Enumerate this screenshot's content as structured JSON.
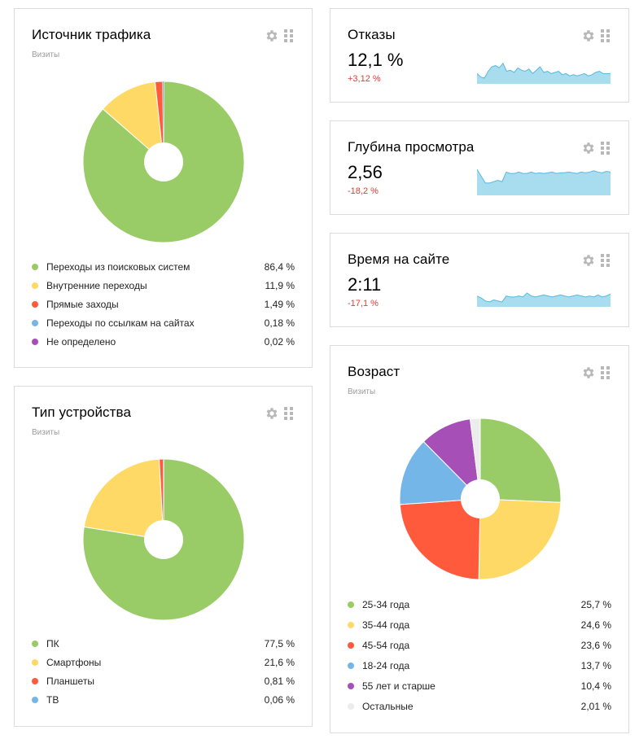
{
  "traffic": {
    "title": "Источник трафика",
    "subtitle": "Визиты",
    "chart_data": {
      "type": "pie",
      "title": "Источник трафика",
      "subtitle": "Визиты",
      "categories": [
        "Переходы из поисковых систем",
        "Внутренние переходы",
        "Прямые заходы",
        "Переходы по ссылкам на сайтах",
        "Не определено"
      ],
      "values": [
        86.4,
        11.9,
        1.49,
        0.18,
        0.02
      ],
      "colors": [
        "#99cc66",
        "#ffd966",
        "#ff5a3c",
        "#74b6e8",
        "#a64fb6"
      ],
      "value_labels": [
        "86,4 %",
        "11,9 %",
        "1,49 %",
        "0,18 %",
        "0,02 %"
      ]
    }
  },
  "device": {
    "title": "Тип устройства",
    "subtitle": "Визиты",
    "chart_data": {
      "type": "pie",
      "title": "Тип устройства",
      "subtitle": "Визиты",
      "categories": [
        "ПК",
        "Смартфоны",
        "Планшеты",
        "ТВ"
      ],
      "values": [
        77.5,
        21.6,
        0.81,
        0.06
      ],
      "colors": [
        "#99cc66",
        "#ffd966",
        "#ff5a3c",
        "#74b6e8"
      ],
      "value_labels": [
        "77,5 %",
        "21,6 %",
        "0,81 %",
        "0,06 %"
      ]
    }
  },
  "bounce": {
    "title": "Отказы",
    "value": "12,1 %",
    "delta": "+3,12 %",
    "spark": [
      0.45,
      0.3,
      0.25,
      0.55,
      0.75,
      0.8,
      0.7,
      0.9,
      0.55,
      0.6,
      0.5,
      0.7,
      0.6,
      0.55,
      0.65,
      0.45,
      0.6,
      0.75,
      0.5,
      0.55,
      0.45,
      0.5,
      0.55,
      0.4,
      0.45,
      0.35,
      0.4,
      0.35,
      0.4,
      0.45,
      0.35,
      0.4,
      0.5,
      0.55,
      0.45,
      0.45,
      0.45
    ]
  },
  "depth": {
    "title": "Глубина просмотра",
    "value": "2,56",
    "delta": "-18,2 %",
    "spark": [
      0.95,
      0.7,
      0.45,
      0.45,
      0.5,
      0.55,
      0.5,
      0.85,
      0.8,
      0.8,
      0.85,
      0.8,
      0.8,
      0.85,
      0.8,
      0.82,
      0.8,
      0.82,
      0.85,
      0.8,
      0.82,
      0.83,
      0.85,
      0.82,
      0.8,
      0.85,
      0.82,
      0.85,
      0.9,
      0.85,
      0.82,
      0.88,
      0.85
    ]
  },
  "time": {
    "title": "Время на сайте",
    "value": "2:11",
    "delta": "-17,1 %",
    "spark": [
      0.55,
      0.45,
      0.3,
      0.25,
      0.35,
      0.3,
      0.25,
      0.55,
      0.5,
      0.5,
      0.55,
      0.5,
      0.7,
      0.55,
      0.5,
      0.55,
      0.6,
      0.55,
      0.5,
      0.55,
      0.6,
      0.55,
      0.5,
      0.55,
      0.6,
      0.55,
      0.5,
      0.55,
      0.5,
      0.6,
      0.5,
      0.55,
      0.65
    ]
  },
  "age": {
    "title": "Возраст",
    "subtitle": "Визиты",
    "chart_data": {
      "type": "pie",
      "title": "Возраст",
      "subtitle": "Визиты",
      "categories": [
        "25-34 года",
        "35-44 года",
        "45-54 года",
        "18-24 года",
        "55 лет и старше",
        "Остальные"
      ],
      "values": [
        25.7,
        24.6,
        23.6,
        13.7,
        10.4,
        2.01
      ],
      "colors": [
        "#99cc66",
        "#ffd966",
        "#ff5a3c",
        "#74b6e8",
        "#a64fb6",
        "#ececec"
      ],
      "value_labels": [
        "25,7 %",
        "24,6 %",
        "23,6 %",
        "13,7 %",
        "10,4 %",
        "2,01 %"
      ]
    }
  },
  "icons": {
    "settings": "gear-icon",
    "drag": "drag-handle-icon"
  },
  "colors": {
    "spark_fill": "#a8dcef",
    "spark_line": "#5bb8dd",
    "delta": "#e53935"
  }
}
